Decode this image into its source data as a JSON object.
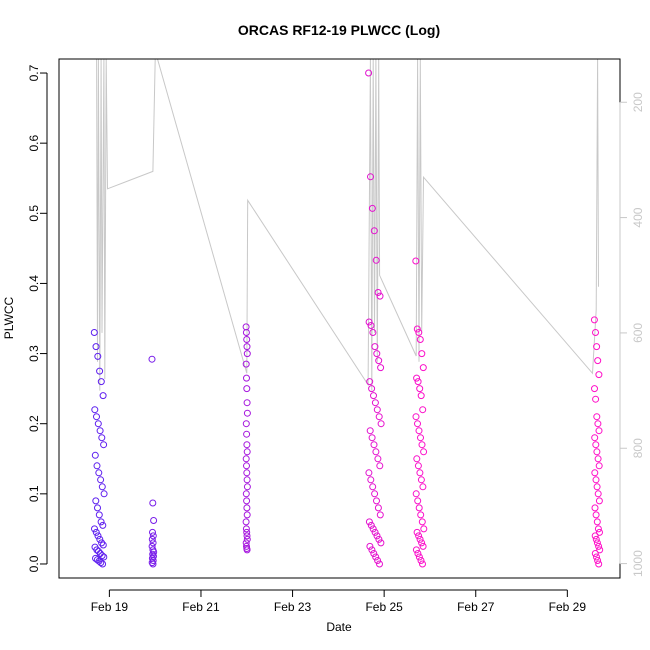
{
  "chart_data": {
    "type": "scatter",
    "title": "ORCAS RF12-19 PLWCC (Log)",
    "xlabel": "Date",
    "ylabel": "PLWCC",
    "x_ticks": [
      "Feb 19",
      "Feb 21",
      "Feb 23",
      "Feb 25",
      "Feb 27",
      "Feb 29"
    ],
    "x_tick_days": [
      19,
      21,
      23,
      25,
      27,
      29
    ],
    "xlim_days": [
      17.9,
      30.15
    ],
    "ylim": [
      -0.02,
      0.72
    ],
    "y_ticks": [
      0.0,
      0.1,
      0.2,
      0.3,
      0.4,
      0.5,
      0.6,
      0.7
    ],
    "y_tick_labels": [
      "0.0",
      "0.1",
      "0.2",
      "0.3",
      "0.4",
      "0.5",
      "0.6",
      "0.7"
    ],
    "secondary_axis": {
      "label": "",
      "ticks": [
        200,
        400,
        600,
        800,
        1000
      ],
      "tick_labels": [
        "200",
        "400",
        "600",
        "800",
        "1000"
      ],
      "range_top": 125,
      "range_bottom": 1025,
      "reversed": true,
      "color": "#c8c8c8"
    },
    "color_start": "#5a1ff0",
    "color_end": "#ff10c8",
    "line_color": "#c8c8c8",
    "point_style": "open circle",
    "clusters": [
      {
        "day": 18.78,
        "spread": 0.22,
        "values": [
          0.33,
          0.31,
          0.296,
          0.275,
          0.26,
          0.24,
          0.22,
          0.21,
          0.2,
          0.19,
          0.18,
          0.17,
          0.155,
          0.14,
          0.13,
          0.12,
          0.11,
          0.1,
          0.09,
          0.08,
          0.07,
          0.06,
          0.055,
          0.05,
          0.045,
          0.04,
          0.035,
          0.03,
          0.027,
          0.024,
          0.02,
          0.018,
          0.015,
          0.012,
          0.01,
          0.008,
          0.006,
          0.004,
          0.002,
          0.0
        ]
      },
      {
        "day": 19.95,
        "spread": 0.04,
        "values": [
          0.292,
          0.087,
          0.062,
          0.045,
          0.04,
          0.035,
          0.03,
          0.025,
          0.02,
          0.017,
          0.014,
          0.011,
          0.008,
          0.005,
          0.002,
          0.0
        ]
      },
      {
        "day": 22.0,
        "spread": 0.03,
        "values": [
          0.338,
          0.33,
          0.32,
          0.31,
          0.3,
          0.285,
          0.265,
          0.25,
          0.23,
          0.215,
          0.2,
          0.185,
          0.17,
          0.16,
          0.15,
          0.14,
          0.13,
          0.12,
          0.11,
          0.1,
          0.09,
          0.08,
          0.07,
          0.06,
          0.05,
          0.045,
          0.04,
          0.035,
          0.03,
          0.025,
          0.022,
          0.02
        ]
      },
      {
        "day": 24.8,
        "spread": 0.28,
        "values": [
          0.7,
          0.552,
          0.507,
          0.475,
          0.433,
          0.387,
          0.382,
          0.345,
          0.34,
          0.33,
          0.31,
          0.3,
          0.29,
          0.28,
          0.26,
          0.25,
          0.24,
          0.23,
          0.22,
          0.21,
          0.2,
          0.19,
          0.18,
          0.17,
          0.16,
          0.15,
          0.14,
          0.13,
          0.12,
          0.11,
          0.1,
          0.09,
          0.08,
          0.07,
          0.06,
          0.055,
          0.05,
          0.045,
          0.04,
          0.035,
          0.03,
          0.025,
          0.02,
          0.015,
          0.01,
          0.005,
          0.0
        ]
      },
      {
        "day": 25.78,
        "spread": 0.18,
        "values": [
          0.432,
          0.335,
          0.33,
          0.32,
          0.3,
          0.28,
          0.265,
          0.26,
          0.25,
          0.24,
          0.22,
          0.21,
          0.2,
          0.19,
          0.18,
          0.17,
          0.16,
          0.15,
          0.14,
          0.13,
          0.12,
          0.11,
          0.1,
          0.09,
          0.08,
          0.07,
          0.06,
          0.05,
          0.045,
          0.04,
          0.035,
          0.03,
          0.025,
          0.02,
          0.015,
          0.01,
          0.005,
          0.0
        ]
      },
      {
        "day": 29.65,
        "spread": 0.12,
        "values": [
          0.348,
          0.33,
          0.31,
          0.29,
          0.27,
          0.25,
          0.235,
          0.21,
          0.2,
          0.19,
          0.18,
          0.17,
          0.16,
          0.15,
          0.14,
          0.13,
          0.12,
          0.11,
          0.1,
          0.09,
          0.08,
          0.07,
          0.06,
          0.05,
          0.045,
          0.04,
          0.035,
          0.03,
          0.025,
          0.02,
          0.015,
          0.01,
          0.005,
          0.0
        ]
      }
    ],
    "altitude_line": [
      {
        "day": 18.72,
        "alt": 125
      },
      {
        "day": 18.74,
        "alt": 650
      },
      {
        "day": 18.76,
        "alt": 125
      },
      {
        "day": 18.79,
        "alt": 700
      },
      {
        "day": 18.82,
        "alt": 125
      },
      {
        "day": 18.84,
        "alt": 600
      },
      {
        "day": 18.88,
        "alt": 125
      },
      {
        "day": 18.9,
        "alt": 680
      },
      {
        "day": 18.93,
        "alt": 125
      },
      {
        "day": 18.96,
        "alt": 350
      },
      {
        "day": 19.95,
        "alt": 320
      },
      {
        "day": 20.0,
        "alt": 125
      },
      {
        "day": 20.05,
        "alt": 125
      },
      {
        "day": 22.0,
        "alt": 670
      },
      {
        "day": 22.02,
        "alt": 370
      },
      {
        "day": 24.65,
        "alt": 690
      },
      {
        "day": 24.7,
        "alt": 125
      },
      {
        "day": 24.73,
        "alt": 700
      },
      {
        "day": 24.76,
        "alt": 125
      },
      {
        "day": 24.79,
        "alt": 600
      },
      {
        "day": 24.82,
        "alt": 125
      },
      {
        "day": 24.85,
        "alt": 650
      },
      {
        "day": 24.88,
        "alt": 125
      },
      {
        "day": 24.9,
        "alt": 500
      },
      {
        "day": 25.7,
        "alt": 640
      },
      {
        "day": 25.73,
        "alt": 125
      },
      {
        "day": 25.76,
        "alt": 650
      },
      {
        "day": 25.79,
        "alt": 125
      },
      {
        "day": 25.82,
        "alt": 600
      },
      {
        "day": 25.86,
        "alt": 330
      },
      {
        "day": 29.55,
        "alt": 670
      },
      {
        "day": 29.63,
        "alt": 560
      },
      {
        "day": 29.66,
        "alt": 125
      },
      {
        "day": 29.68,
        "alt": 520
      }
    ]
  }
}
